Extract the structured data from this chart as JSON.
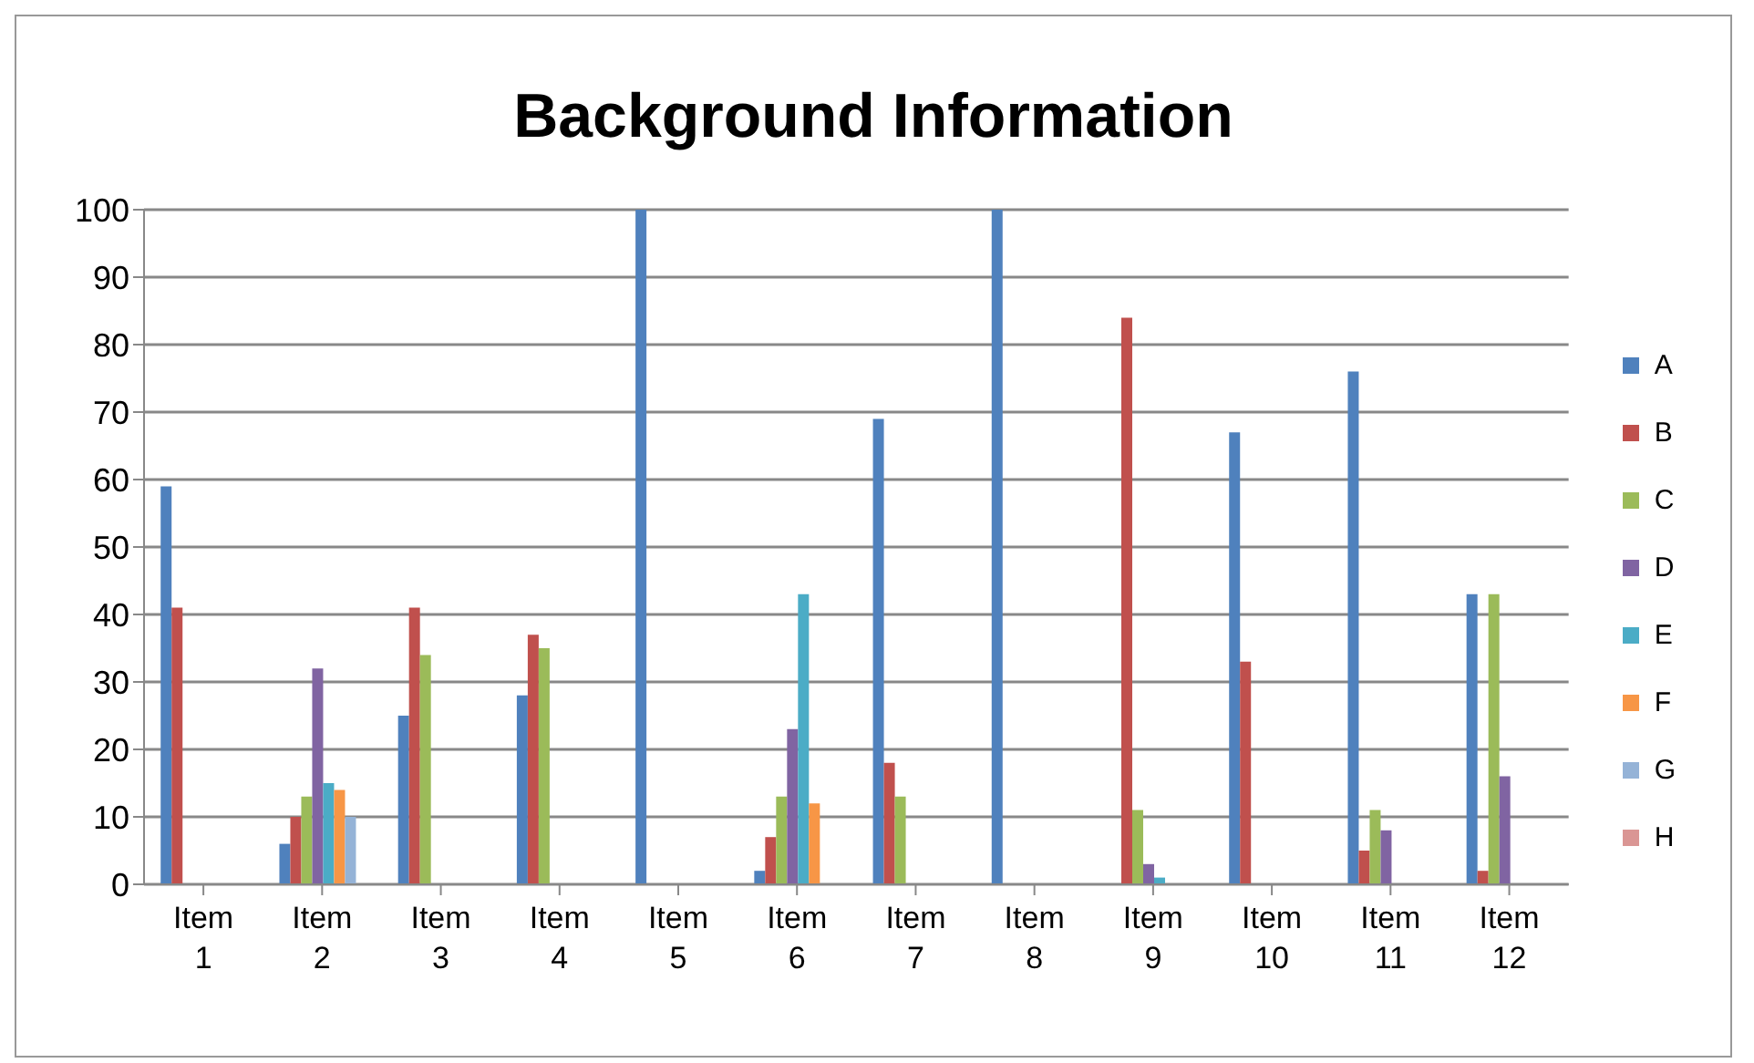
{
  "chart_data": {
    "type": "bar",
    "title": "Background Information",
    "categories": [
      "Item 1",
      "Item 2",
      "Item 3",
      "Item 4",
      "Item 5",
      "Item 6",
      "Item 7",
      "Item 8",
      "Item 9",
      "Item 10",
      "Item 11",
      "Item 12"
    ],
    "series": [
      {
        "name": "A",
        "color": "#4f81bd",
        "values": [
          59,
          6,
          25,
          28,
          100,
          2,
          69,
          100,
          0,
          67,
          76,
          43
        ]
      },
      {
        "name": "B",
        "color": "#c0504d",
        "values": [
          41,
          10,
          41,
          37,
          0,
          7,
          18,
          0,
          84,
          33,
          5,
          2
        ]
      },
      {
        "name": "C",
        "color": "#9bbb59",
        "values": [
          0,
          13,
          34,
          35,
          0,
          13,
          13,
          0,
          11,
          0,
          11,
          43
        ]
      },
      {
        "name": "D",
        "color": "#8064a2",
        "values": [
          0,
          32,
          0,
          0,
          0,
          23,
          0,
          0,
          3,
          0,
          8,
          16
        ]
      },
      {
        "name": "E",
        "color": "#4bacc6",
        "values": [
          0,
          15,
          0,
          0,
          0,
          43,
          0,
          0,
          1,
          0,
          0,
          0
        ]
      },
      {
        "name": "F",
        "color": "#f79646",
        "values": [
          0,
          14,
          0,
          0,
          0,
          12,
          0,
          0,
          0,
          0,
          0,
          0
        ]
      },
      {
        "name": "G",
        "color": "#95b3d7",
        "values": [
          0,
          10,
          0,
          0,
          0,
          0,
          0,
          0,
          0,
          0,
          0,
          0
        ]
      },
      {
        "name": "H",
        "color": "#da9694",
        "values": [
          0,
          0,
          0,
          0,
          0,
          0,
          0,
          0,
          0,
          0,
          0,
          0
        ]
      }
    ],
    "ylim": [
      0,
      100
    ],
    "yticks": [
      0,
      10,
      20,
      30,
      40,
      50,
      60,
      70,
      80,
      90,
      100
    ],
    "grid": "y",
    "legend": "right"
  }
}
